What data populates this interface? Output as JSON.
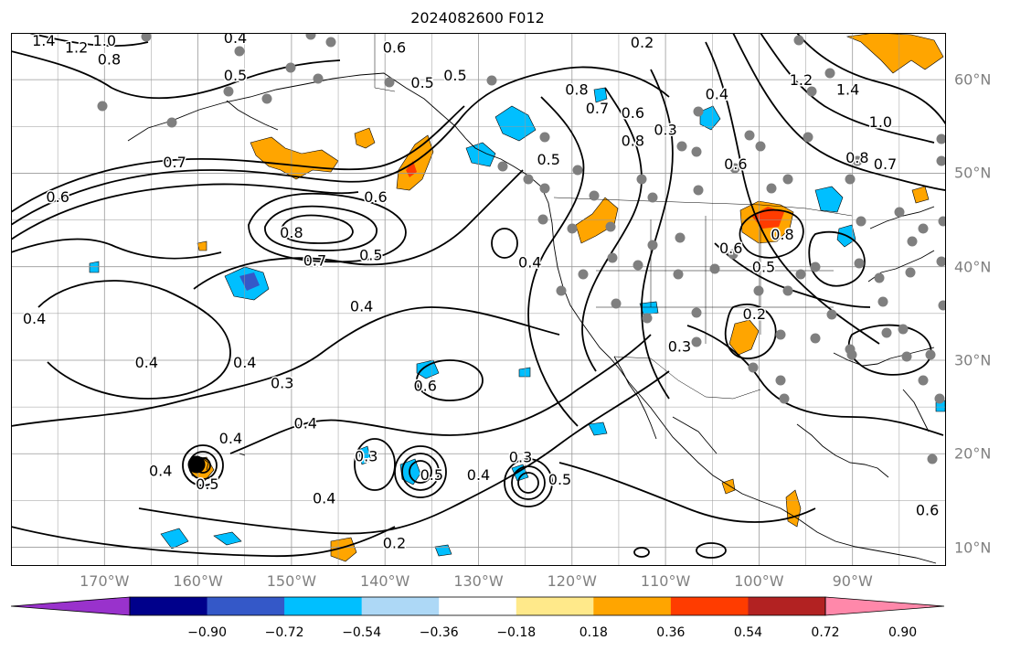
{
  "title": "2024082600 F012",
  "map": {
    "lon_range": [
      -180,
      -80
    ],
    "lat_range": [
      8,
      65
    ],
    "lon_ticks": [
      {
        "value": -170,
        "label": "170°W"
      },
      {
        "value": -160,
        "label": "160°W"
      },
      {
        "value": -150,
        "label": "150°W"
      },
      {
        "value": -140,
        "label": "140°W"
      },
      {
        "value": -130,
        "label": "130°W"
      },
      {
        "value": -120,
        "label": "120°W"
      },
      {
        "value": -110,
        "label": "110°W"
      },
      {
        "value": -100,
        "label": "100°W"
      },
      {
        "value": -90,
        "label": "90°W"
      }
    ],
    "lat_ticks": [
      {
        "value": 60,
        "label": "60°N"
      },
      {
        "value": 50,
        "label": "50°N"
      },
      {
        "value": 40,
        "label": "40°N"
      },
      {
        "value": 30,
        "label": "30°N"
      },
      {
        "value": 20,
        "label": "20°N"
      },
      {
        "value": 10,
        "label": "10°N"
      }
    ],
    "contour_labels": [
      {
        "lon": -173,
        "lat": 63.5,
        "text": "1.2"
      },
      {
        "lon": -170,
        "lat": 64.2,
        "text": "1.0"
      },
      {
        "lon": -176.5,
        "lat": 64.2,
        "text": "1.4"
      },
      {
        "lon": -169.5,
        "lat": 62.2,
        "text": "0.8"
      },
      {
        "lon": -156,
        "lat": 64.5,
        "text": "0.4"
      },
      {
        "lon": -156,
        "lat": 60.5,
        "text": "0.5"
      },
      {
        "lon": -139,
        "lat": 63.5,
        "text": "0.6"
      },
      {
        "lon": -136,
        "lat": 59.7,
        "text": "0.5"
      },
      {
        "lon": -132.5,
        "lat": 60.5,
        "text": "0.5"
      },
      {
        "lon": -162.5,
        "lat": 51.2,
        "text": "0.7"
      },
      {
        "lon": -175,
        "lat": 47.5,
        "text": "0.6"
      },
      {
        "lon": -141,
        "lat": 47.5,
        "text": "0.6"
      },
      {
        "lon": -150,
        "lat": 43.7,
        "text": "0.8"
      },
      {
        "lon": -147.5,
        "lat": 40.7,
        "text": "0.7"
      },
      {
        "lon": -141.5,
        "lat": 41.3,
        "text": "0.5"
      },
      {
        "lon": -142.5,
        "lat": 35.8,
        "text": "0.4"
      },
      {
        "lon": -177.5,
        "lat": 34.5,
        "text": "0.4"
      },
      {
        "lon": -165.5,
        "lat": 29.8,
        "text": "0.4"
      },
      {
        "lon": -155,
        "lat": 29.8,
        "text": "0.4"
      },
      {
        "lon": -151,
        "lat": 27.6,
        "text": "0.3"
      },
      {
        "lon": -156.5,
        "lat": 21.7,
        "text": "0.4"
      },
      {
        "lon": -164,
        "lat": 18.2,
        "text": "0.4"
      },
      {
        "lon": -148.5,
        "lat": 23.3,
        "text": "0.4"
      },
      {
        "lon": -135.7,
        "lat": 27.3,
        "text": "0.6"
      },
      {
        "lon": -142,
        "lat": 19.8,
        "text": "0.3"
      },
      {
        "lon": -135,
        "lat": 17.8,
        "text": "0.5"
      },
      {
        "lon": -146.5,
        "lat": 15.3,
        "text": "0.4"
      },
      {
        "lon": -130,
        "lat": 17.8,
        "text": "0.4"
      },
      {
        "lon": -125.5,
        "lat": 19.7,
        "text": "0.3"
      },
      {
        "lon": -159,
        "lat": 16.8,
        "text": "0.5"
      },
      {
        "lon": -121.3,
        "lat": 17.3,
        "text": "0.5"
      },
      {
        "lon": -139,
        "lat": 10.5,
        "text": "0.2"
      },
      {
        "lon": -119.5,
        "lat": 59,
        "text": "0.8"
      },
      {
        "lon": -117.3,
        "lat": 57,
        "text": "0.7"
      },
      {
        "lon": -122.5,
        "lat": 51.5,
        "text": "0.5"
      },
      {
        "lon": -113.5,
        "lat": 53.5,
        "text": "0.8"
      },
      {
        "lon": -113.5,
        "lat": 56.5,
        "text": "0.6"
      },
      {
        "lon": -110,
        "lat": 54.7,
        "text": "0.3"
      },
      {
        "lon": -112.5,
        "lat": 64,
        "text": "0.2"
      },
      {
        "lon": -104.5,
        "lat": 58.5,
        "text": "0.4"
      },
      {
        "lon": -102.5,
        "lat": 51,
        "text": "0.6"
      },
      {
        "lon": -95.5,
        "lat": 60,
        "text": "1.2"
      },
      {
        "lon": -90.5,
        "lat": 59,
        "text": "1.4"
      },
      {
        "lon": -87,
        "lat": 55.5,
        "text": "1.0"
      },
      {
        "lon": -89.5,
        "lat": 51.7,
        "text": "0.8"
      },
      {
        "lon": -86.5,
        "lat": 51,
        "text": "0.7"
      },
      {
        "lon": -103,
        "lat": 42,
        "text": "0.6"
      },
      {
        "lon": -99.5,
        "lat": 40,
        "text": "0.5"
      },
      {
        "lon": -97.5,
        "lat": 43.5,
        "text": "0.8"
      },
      {
        "lon": -124.5,
        "lat": 40.5,
        "text": "0.4"
      },
      {
        "lon": -100.5,
        "lat": 35,
        "text": "0.2"
      },
      {
        "lon": -108.5,
        "lat": 31.5,
        "text": "0.3"
      },
      {
        "lon": -82,
        "lat": 14,
        "text": "0.6"
      }
    ]
  },
  "colorbar": {
    "colors": [
      "#9932cc",
      "#00008b",
      "#3458c8",
      "#00bfff",
      "#add8f6",
      "#ffffff",
      "#ffe98a",
      "#ffa500",
      "#ff3c00",
      "#b22222",
      "#ff88aa"
    ],
    "tick_labels": [
      "−0.90",
      "−0.72",
      "−0.54",
      "−0.36",
      "−0.18",
      "0.18",
      "0.36",
      "0.54",
      "0.72",
      "0.90"
    ]
  },
  "colors": {
    "grid": "#999999",
    "contour": "#000000",
    "coast": "#000000",
    "station_dot": "#7f7f7f",
    "marker": "#000000"
  }
}
